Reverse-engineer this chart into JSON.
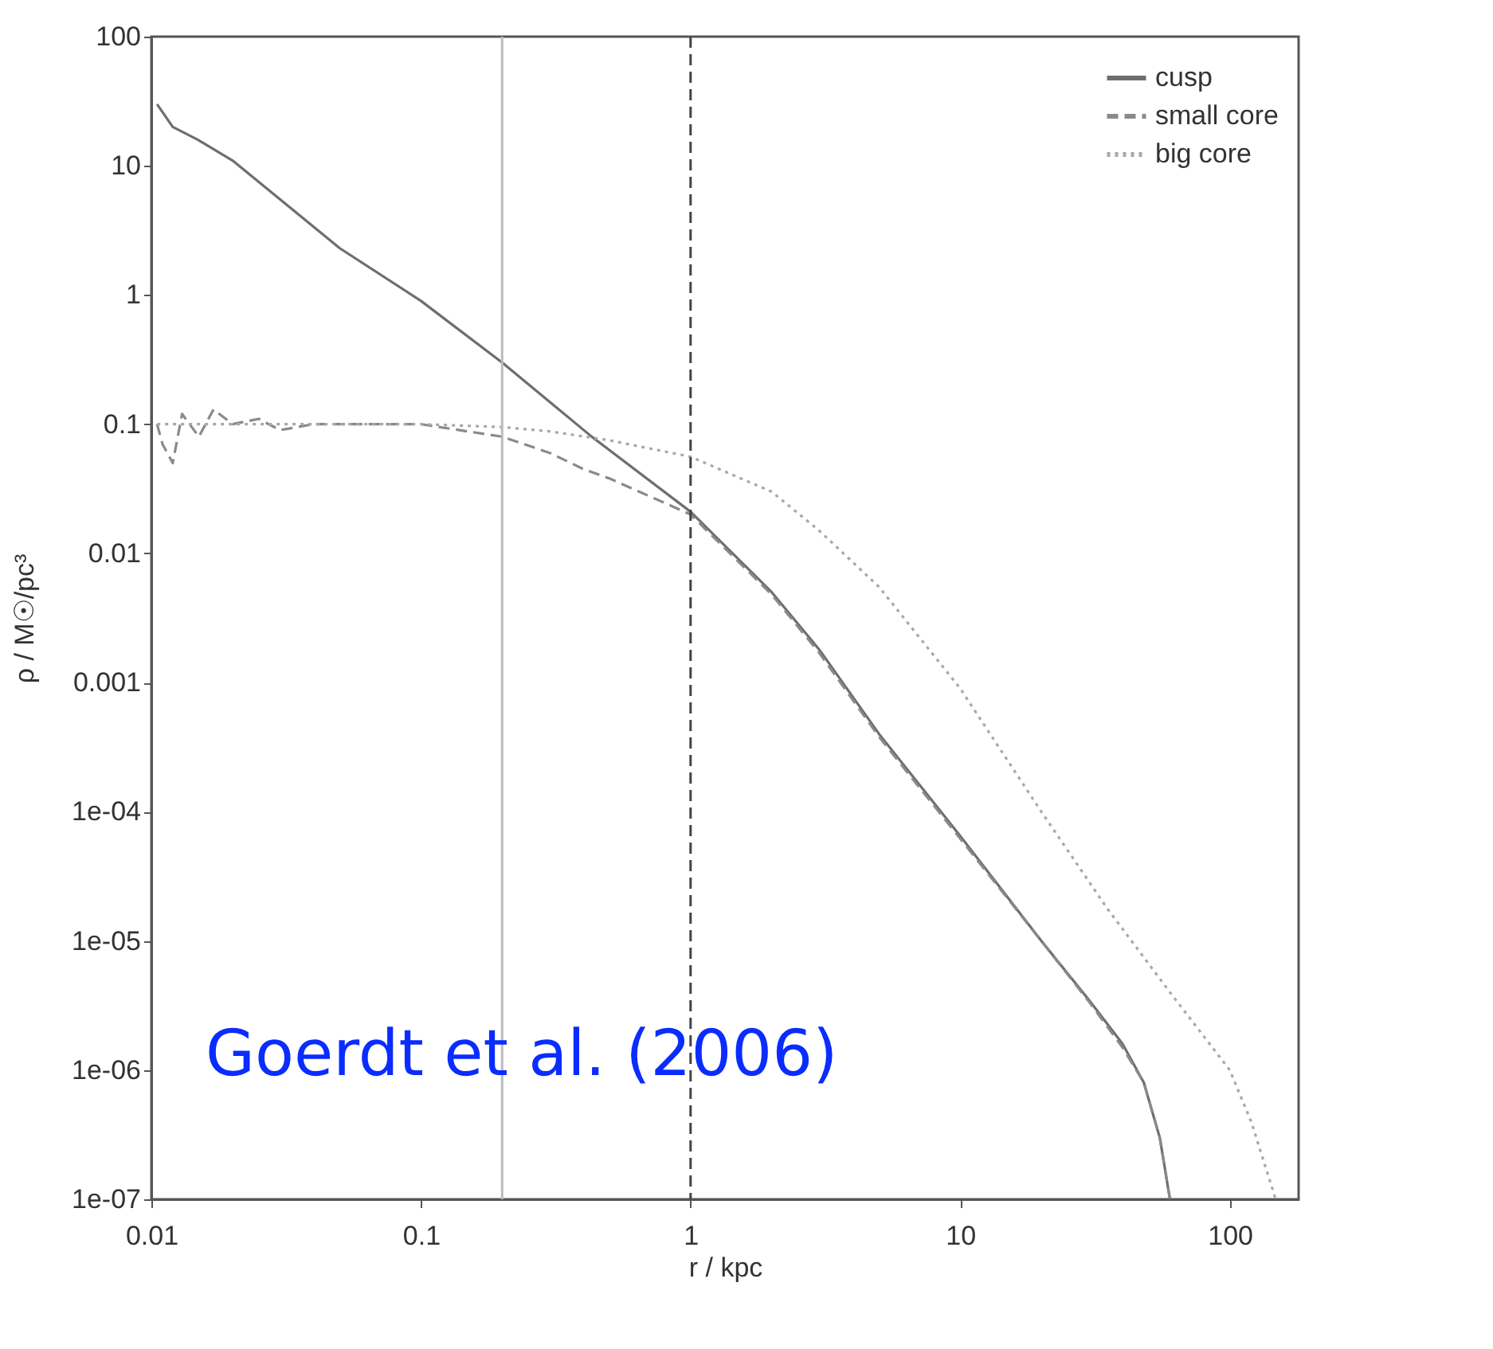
{
  "chart_data": {
    "type": "line",
    "xlabel": "r / kpc",
    "ylabel": "ρ / M☉/pc³",
    "log": "xy",
    "grid": false,
    "legend": "top right",
    "xlim": [
      0.01,
      180
    ],
    "ylim": [
      1e-07,
      100
    ],
    "xticks": [
      0.01,
      0.1,
      1,
      10,
      100
    ],
    "yticks": [
      {
        "value": 1e-07,
        "label": "1e-07"
      },
      {
        "value": 1e-06,
        "label": "1e-06"
      },
      {
        "value": 1e-05,
        "label": "1e-05"
      },
      {
        "value": 0.0001,
        "label": "1e-04"
      },
      0.001,
      0.01,
      0.1,
      1,
      10,
      100
    ],
    "series": [
      {
        "name": "cusp",
        "color": "#6e6e6e",
        "line_style": "solid",
        "x": [
          0.0105,
          0.012,
          0.0148,
          0.02,
          0.05,
          0.1,
          0.2,
          0.43,
          1,
          2,
          3,
          5,
          10,
          20,
          30,
          40,
          48,
          55,
          60
        ],
        "values": [
          30,
          20,
          16,
          11,
          2.3,
          0.9,
          0.3,
          0.08,
          0.021,
          0.005,
          0.0018,
          0.0004,
          6.5e-05,
          1e-05,
          3.5e-06,
          1.6e-06,
          8e-07,
          3e-07,
          1e-07
        ]
      },
      {
        "name": "small core",
        "color": "#8a8a8a",
        "line_style": "dashed",
        "x": [
          0.0105,
          0.011,
          0.012,
          0.013,
          0.015,
          0.017,
          0.02,
          0.025,
          0.03,
          0.04,
          0.1,
          0.2,
          0.3,
          0.4,
          0.5,
          1,
          2,
          3,
          5,
          10,
          20,
          30,
          40,
          48,
          55,
          60
        ],
        "values": [
          0.1,
          0.07,
          0.05,
          0.12,
          0.08,
          0.13,
          0.1,
          0.11,
          0.09,
          0.1,
          0.1,
          0.08,
          0.06,
          0.045,
          0.038,
          0.02,
          0.0048,
          0.0017,
          0.00038,
          6.2e-05,
          1e-05,
          3.4e-06,
          1.5e-06,
          8e-07,
          3e-07,
          1e-07
        ]
      },
      {
        "name": "big core",
        "color": "#a8a8a8",
        "line_style": "dotted",
        "x": [
          0.0105,
          0.02,
          0.05,
          0.1,
          0.2,
          0.3,
          0.5,
          1,
          2,
          3,
          5,
          10,
          20,
          35,
          60,
          100,
          120,
          148
        ],
        "values": [
          0.1,
          0.1,
          0.1,
          0.1,
          0.095,
          0.088,
          0.075,
          0.056,
          0.03,
          0.015,
          0.0055,
          0.0009,
          0.0001,
          1.8e-05,
          4e-06,
          1e-06,
          4e-07,
          1e-07
        ]
      }
    ],
    "ref_lines": [
      {
        "axis": "x",
        "value": 0.2,
        "color": "#bbbbbb",
        "line_style": "solid"
      },
      {
        "axis": "x",
        "value": 1,
        "color": "#444444",
        "line_style": "dashed"
      }
    ],
    "annotations": [
      "Goerdt et al. (2006)"
    ]
  }
}
